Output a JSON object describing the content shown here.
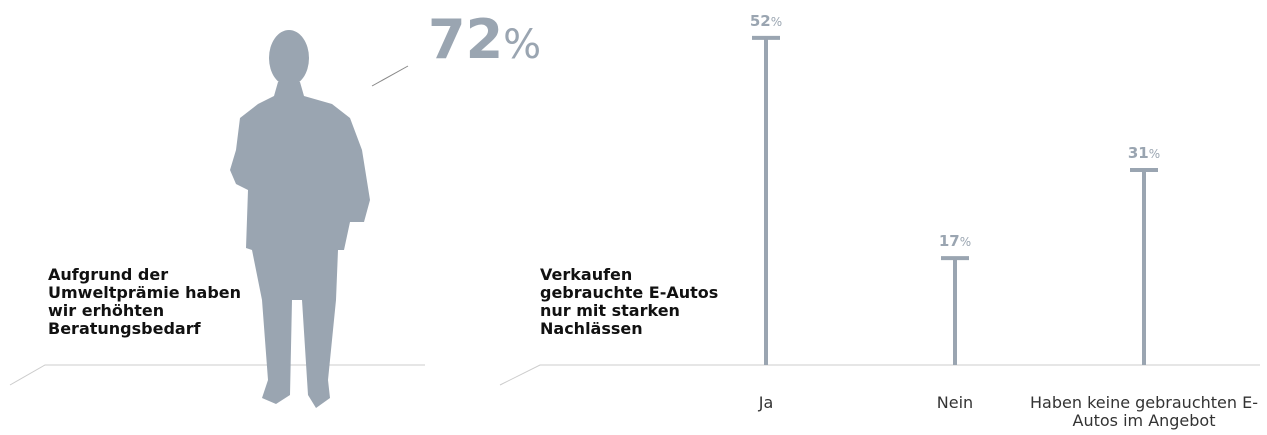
{
  "chart_data": [
    {
      "type": "stat",
      "title": "Aufgrund der Umweltprämie haben wir erhöhten Beratungsbedarf",
      "value": 72,
      "value_label": "72%",
      "color": "#9aa5b1"
    },
    {
      "type": "lollipop",
      "title": "Verkaufen gebrauchte E-Autos nur mit starken Nachlässen",
      "categories": [
        "Ja",
        "Nein",
        "Haben keine gebrauchten E-Autos im Angebot"
      ],
      "values": [
        52,
        17,
        31
      ],
      "value_labels": [
        "52%",
        "17%",
        "31%"
      ],
      "color": "#9aa5b1"
    }
  ]
}
